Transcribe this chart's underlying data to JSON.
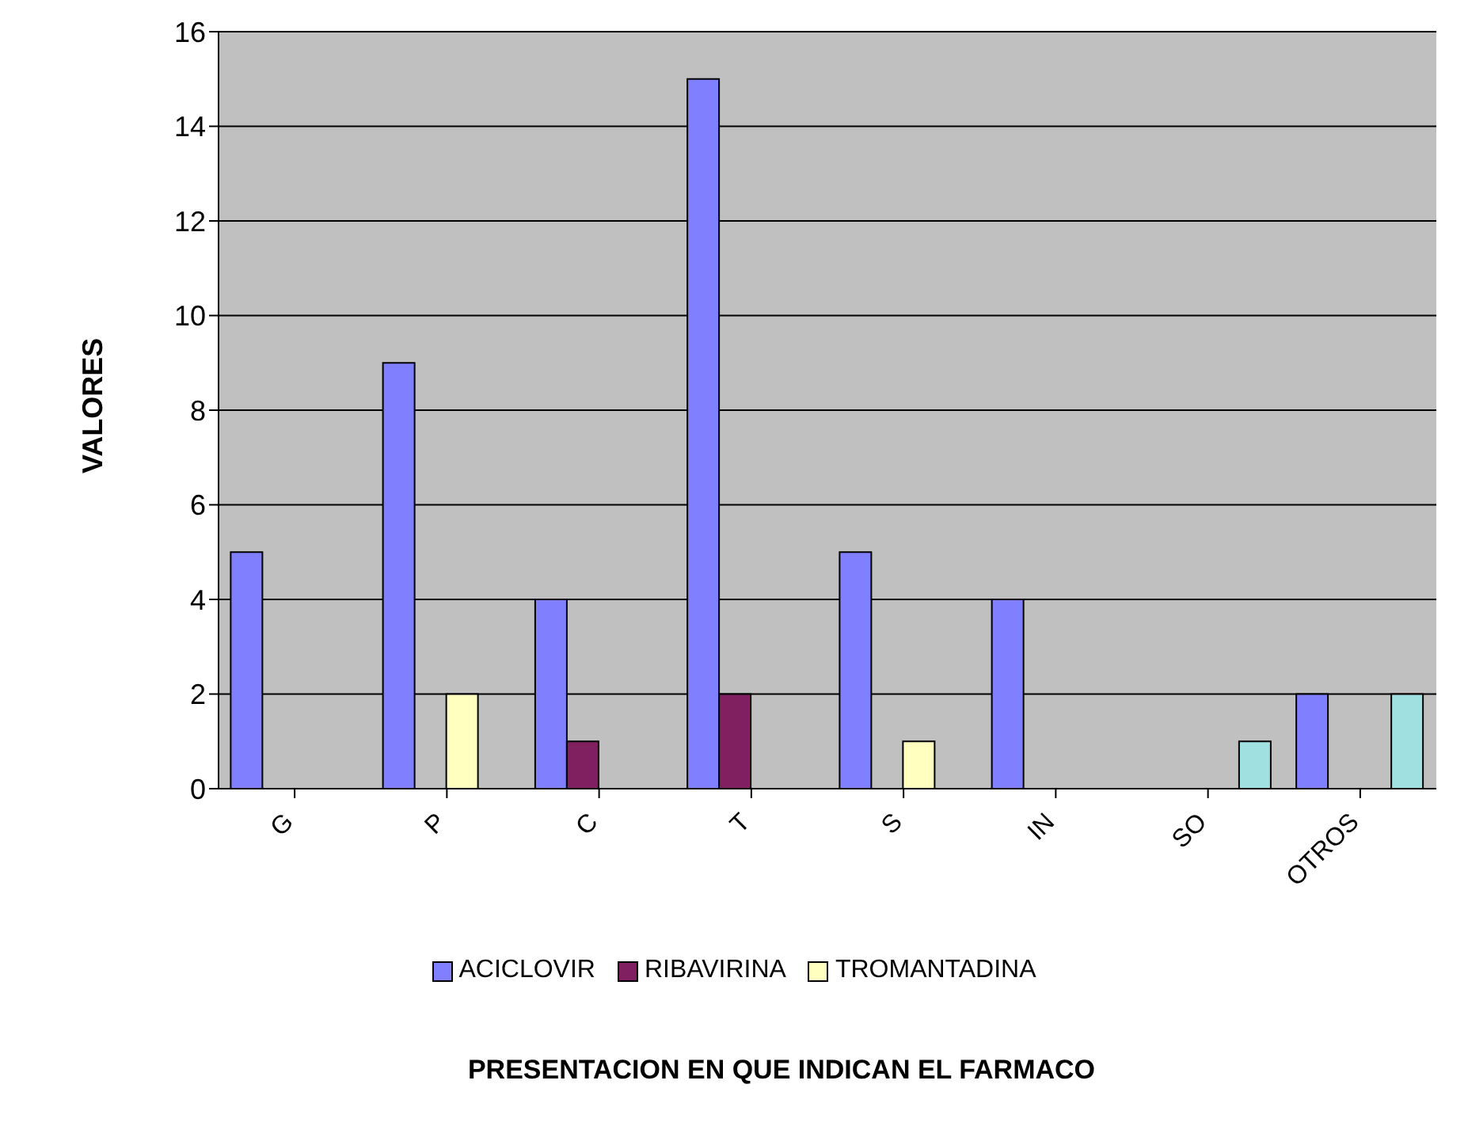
{
  "chart_data": {
    "type": "bar",
    "annotations": [
      "PRESENTACION EN QUE INDICAN EL FARMACO"
    ],
    "ylabel": "VALORES",
    "categories": [
      "G",
      "P",
      "C",
      "T",
      "S",
      "IN",
      "SO",
      "OTROS"
    ],
    "series": [
      {
        "name": "ACICLOVIR",
        "color": "#8080ff",
        "values": [
          5,
          9,
          4,
          15,
          5,
          4,
          null,
          2
        ]
      },
      {
        "name": "RIBAVIRINA",
        "color": "#802060",
        "values": [
          null,
          null,
          1,
          2,
          null,
          null,
          null,
          null
        ]
      },
      {
        "name": "TROMANTADINA",
        "color": "#ffffc0",
        "values": [
          null,
          2,
          null,
          null,
          1,
          null,
          null,
          null
        ]
      },
      {
        "color": "#a0e0e0",
        "values": [
          null,
          null,
          null,
          null,
          null,
          null,
          1,
          2
        ]
      }
    ],
    "ylim": [
      0,
      16
    ],
    "yticks": [
      0,
      2,
      4,
      6,
      8,
      10,
      12,
      14,
      16
    ],
    "grid": "y",
    "legend": "bottom"
  }
}
